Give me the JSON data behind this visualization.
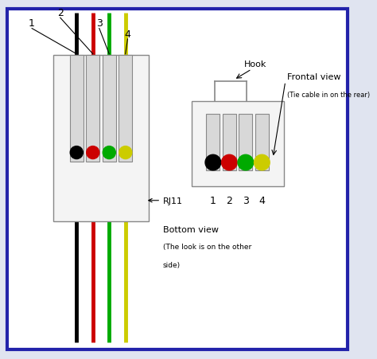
{
  "bg_color": "#e0e4f0",
  "border_color": "#2222aa",
  "inner_bg": "#ffffff",
  "wire_colors": [
    "#000000",
    "#cc0000",
    "#00aa00",
    "#cccc00"
  ],
  "wire_labels": [
    "1",
    "2",
    "3",
    "4"
  ],
  "cb_l": 0.15,
  "cb_r": 0.42,
  "cb_t": 0.85,
  "cb_b": 0.38,
  "fb_l": 0.54,
  "fb_r": 0.8,
  "fb_t": 0.72,
  "fb_b": 0.48,
  "label_rj11": "RJ11",
  "label_bottom_view": "Bottom view",
  "label_bottom_sub1": "(The look is on the other",
  "label_bottom_sub2": "side)",
  "label_frontal_view": "Frontal view",
  "label_frontal_sub": "(Tie cable in on the rear)",
  "label_hook": "Hook",
  "slot_facecolor": "#d8d8d8",
  "slot_edgecolor": "#888888",
  "connector_facecolor": "#f4f4f4",
  "connector_edgecolor": "#888888"
}
